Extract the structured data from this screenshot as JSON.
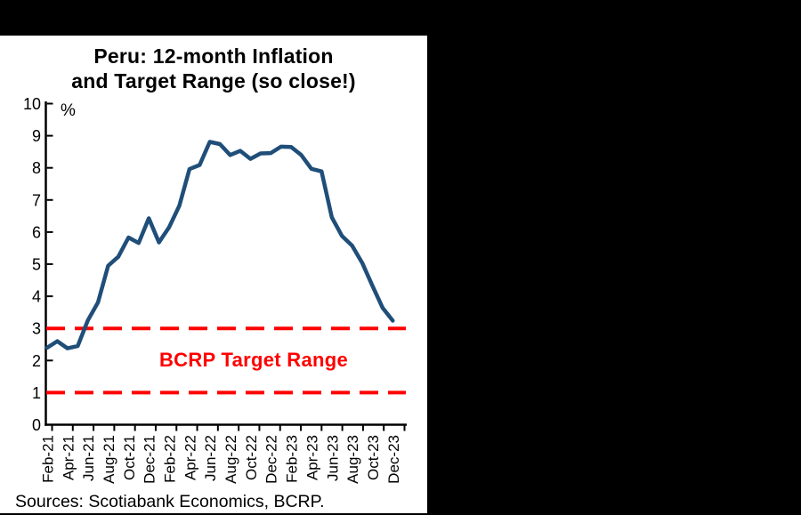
{
  "page": {
    "background_color": "#000000",
    "panel_background_color": "#FFFFFF"
  },
  "title": {
    "line1": "Peru: 12-month Inflation",
    "line2": "and Target Range (so close!)"
  },
  "sources_text": "Sources: Scotiabank Economics, BCRP.",
  "chart_data": {
    "type": "line",
    "title": "Peru: 12-month Inflation and Target Range (so close!)",
    "unit_label": "%",
    "series_name": "Peru 12-month inflation (%)",
    "x": [
      "Feb-21",
      "Mar-21",
      "Apr-21",
      "May-21",
      "Jun-21",
      "Jul-21",
      "Aug-21",
      "Sep-21",
      "Oct-21",
      "Nov-21",
      "Dec-21",
      "Jan-22",
      "Feb-22",
      "Mar-22",
      "Apr-22",
      "May-22",
      "Jun-22",
      "Jul-22",
      "Aug-22",
      "Sep-22",
      "Oct-22",
      "Nov-22",
      "Dec-22",
      "Jan-23",
      "Feb-23",
      "Mar-23",
      "Apr-23",
      "May-23",
      "Jun-23",
      "Jul-23",
      "Aug-23",
      "Sep-23",
      "Oct-23",
      "Nov-23",
      "Dec-23"
    ],
    "values": [
      2.4,
      2.6,
      2.38,
      2.45,
      3.25,
      3.81,
      4.95,
      5.23,
      5.83,
      5.66,
      6.43,
      5.68,
      6.15,
      6.82,
      7.96,
      8.09,
      8.81,
      8.74,
      8.4,
      8.53,
      8.28,
      8.45,
      8.46,
      8.66,
      8.65,
      8.4,
      7.97,
      7.89,
      6.46,
      5.88,
      5.58,
      5.04,
      4.33,
      3.64,
      3.24
    ],
    "xtick_labels": [
      "Feb-21",
      "Apr-21",
      "Jun-21",
      "Aug-21",
      "Oct-21",
      "Dec-21",
      "Feb-22",
      "Apr-22",
      "Jun-22",
      "Aug-22",
      "Oct-22",
      "Dec-22",
      "Feb-23",
      "Apr-23",
      "Jun-23",
      "Aug-23",
      "Oct-23",
      "Dec-23"
    ],
    "yticks": [
      0,
      1,
      2,
      3,
      4,
      5,
      6,
      7,
      8,
      9,
      10
    ],
    "ylim": [
      0,
      10
    ],
    "grid": false,
    "legend": "none",
    "line_color": "#1F4E79",
    "axis_color": "#000000",
    "target_range": {
      "lower": 1,
      "upper": 3,
      "label": "BCRP Target Range",
      "color": "#FF0000",
      "style": "dashed"
    },
    "sources": "Sources: Scotiabank Economics, BCRP."
  }
}
